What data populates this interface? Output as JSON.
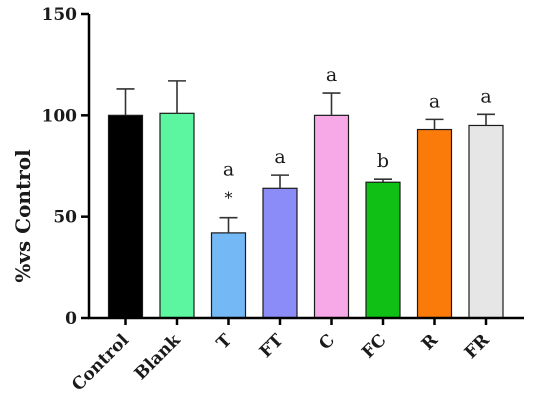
{
  "chart_data": {
    "type": "bar",
    "ylabel": "%vs Control",
    "xlabel": "",
    "ylim": [
      0,
      150
    ],
    "yticks": [
      "0",
      "50",
      "100",
      "150"
    ],
    "categories": [
      "Control",
      "Blank",
      "T",
      "FT",
      "C",
      "FC",
      "R",
      "FR"
    ],
    "values": [
      100,
      101,
      42,
      64,
      100,
      67,
      93,
      95
    ],
    "errors": [
      13,
      16,
      7.5,
      6.5,
      11,
      1.5,
      5,
      5.5
    ],
    "colors": [
      "#000000",
      "#5cf5a0",
      "#74b9f5",
      "#8c8cf8",
      "#f7a8e6",
      "#10c014",
      "#fa7a0a",
      "#e6e6e6"
    ],
    "annotations": [
      "",
      "",
      "a",
      "a",
      "a",
      "b",
      "a",
      "a"
    ],
    "markers": [
      "",
      "",
      "*",
      "",
      "",
      "",
      "",
      ""
    ],
    "grid": false
  }
}
